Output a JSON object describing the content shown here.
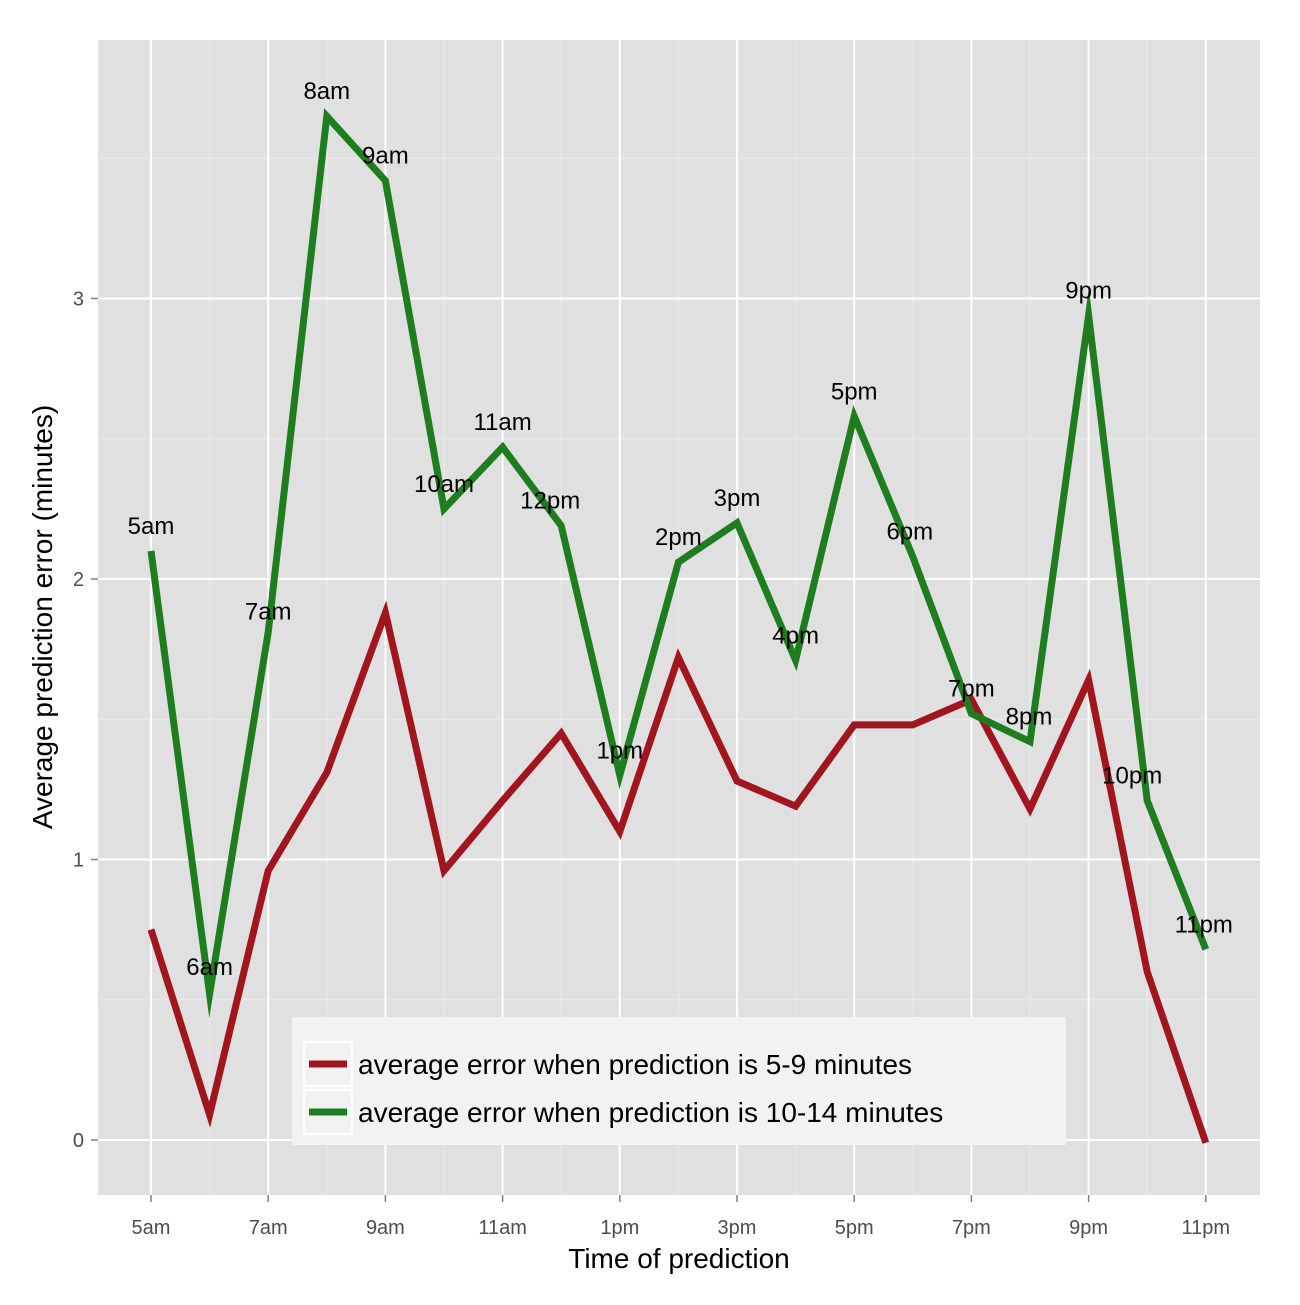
{
  "chart_data": {
    "type": "line",
    "title": "",
    "xlabel": "Time of prediction",
    "ylabel": "Average prediction error (minutes)",
    "x": [
      "5am",
      "6am",
      "7am",
      "8am",
      "9am",
      "10am",
      "11am",
      "12pm",
      "1pm",
      "2pm",
      "3pm",
      "4pm",
      "5pm",
      "6pm",
      "7pm",
      "8pm",
      "9pm",
      "10pm",
      "11pm"
    ],
    "x_tick_labels": [
      "5am",
      "7am",
      "9am",
      "11am",
      "1pm",
      "3pm",
      "5pm",
      "7pm",
      "9pm",
      "11pm"
    ],
    "y_ticks": [
      0,
      1,
      2,
      3
    ],
    "ylim": [
      -0.2,
      3.7
    ],
    "grid": true,
    "legend_position": "bottom-center",
    "series": [
      {
        "name": "average error when prediction is 5-9 minutes",
        "color": "#a1151f",
        "values": [
          0.75,
          0.09,
          0.96,
          1.31,
          1.88,
          0.96,
          1.21,
          1.45,
          1.1,
          1.72,
          1.28,
          1.19,
          1.48,
          1.48,
          1.57,
          1.18,
          1.64,
          0.6,
          -0.01
        ]
      },
      {
        "name": "average error when prediction is 10-14 minutes",
        "color": "#1e7d1e",
        "values": [
          2.1,
          0.52,
          1.81,
          3.65,
          3.42,
          2.25,
          2.47,
          2.19,
          1.3,
          2.06,
          2.2,
          1.71,
          2.58,
          2.08,
          1.52,
          1.42,
          2.94,
          1.21,
          0.68
        ],
        "point_labels": [
          "5am",
          "6am",
          "7am",
          "8am",
          "9am",
          "10am",
          "11am",
          "12pm",
          "1pm",
          "2pm",
          "3pm",
          "4pm",
          "5pm",
          "6pm",
          "7pm",
          "8pm",
          "9pm",
          "10pm",
          "11pm"
        ]
      }
    ]
  }
}
